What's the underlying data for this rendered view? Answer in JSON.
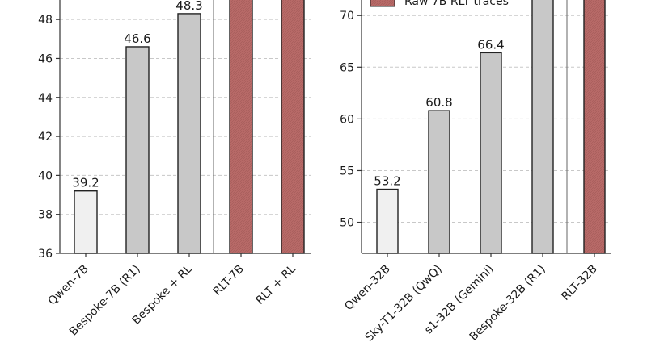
{
  "colors": {
    "baseline": "#f0f0f0",
    "prior": "#c8c8c8",
    "rlt": "#b86a68",
    "separator": "#666666"
  },
  "chart_data": [
    {
      "type": "bar",
      "categories": [
        "Qwen-7B",
        "Bespoke-7B (R1)",
        "Bespoke + RL",
        "RLT-7B",
        "RLT + RL"
      ],
      "values": [
        39.2,
        46.6,
        48.3,
        49.5,
        50.0
      ],
      "data_labels": [
        "39.2",
        "46.6",
        "48.3",
        "",
        ""
      ],
      "bar_colors": [
        "baseline",
        "prior",
        "prior",
        "rlt",
        "rlt"
      ],
      "separator_after_index": 2,
      "ylim": [
        36,
        49
      ],
      "yticks": [
        36,
        38,
        40,
        42,
        44,
        46,
        48
      ],
      "grid": true,
      "title": "",
      "xlabel": "",
      "ylabel": ""
    },
    {
      "type": "bar",
      "categories": [
        "Qwen-32B",
        "Sky-T1-32B (QwQ)",
        "s1-32B (Gemini)",
        "Bespoke-32B (R1)",
        "RLT-32B"
      ],
      "values": [
        53.2,
        60.8,
        66.4,
        72.0,
        72.5
      ],
      "data_labels": [
        "53.2",
        "60.8",
        "66.4",
        "",
        ""
      ],
      "bar_colors": [
        "baseline",
        "prior",
        "prior",
        "prior",
        "rlt"
      ],
      "separator_after_index": 3,
      "ylim": [
        47,
        71.5
      ],
      "yticks": [
        50,
        55,
        60,
        65,
        70
      ],
      "grid": true,
      "legend": {
        "position": "top-right",
        "entries": [
          {
            "label": "Raw 7B RLT traces",
            "color": "rlt"
          }
        ]
      },
      "title": "",
      "xlabel": "",
      "ylabel": ""
    }
  ]
}
